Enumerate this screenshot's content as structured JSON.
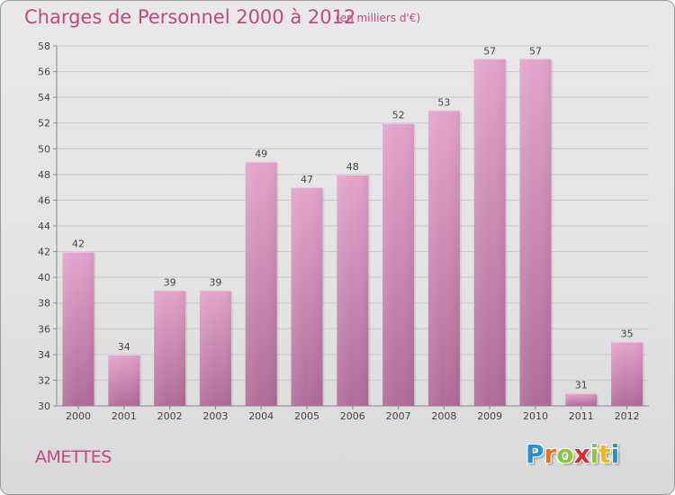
{
  "header": {
    "title": "Charges de Personnel 2000 à 2012",
    "subtitle": "(en milliers d'€)"
  },
  "footer": {
    "commune": "AMETTES",
    "logo_text": "Proxiti"
  },
  "colors": {
    "title": "#c0497f",
    "bar_top": "#e4a4cc",
    "bar_bottom": "#b06c98",
    "logo_letters": [
      "#2a8fd1",
      "#e8731c",
      "#8cc63e",
      "#e2273a",
      "#8cc63e",
      "#f2b51b",
      "#2a8fd1"
    ]
  },
  "chart_data": {
    "type": "bar",
    "categories": [
      "2000",
      "2001",
      "2002",
      "2003",
      "2004",
      "2005",
      "2006",
      "2007",
      "2008",
      "2009",
      "2010",
      "2011",
      "2012"
    ],
    "values": [
      42,
      34,
      39,
      39,
      49,
      47,
      48,
      52,
      53,
      57,
      57,
      31,
      35
    ],
    "title": "Charges de Personnel 2000 à 2012",
    "subtitle": "(en milliers d'€)",
    "ylim": [
      30,
      58
    ],
    "yticks": [
      30,
      32,
      34,
      36,
      38,
      40,
      42,
      44,
      46,
      48,
      50,
      52,
      54,
      56,
      58
    ],
    "grid": true,
    "data_labels": true
  }
}
